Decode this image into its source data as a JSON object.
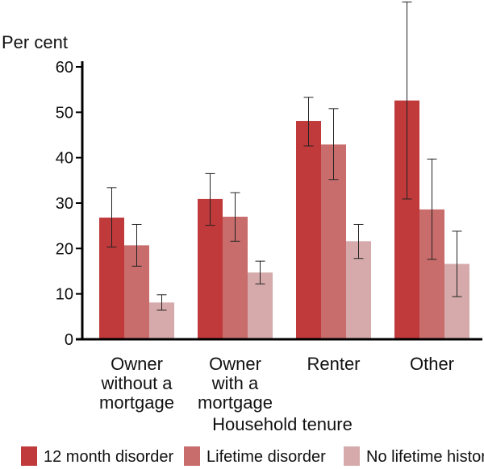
{
  "chart_data": {
    "type": "bar",
    "ylabel": "Per cent",
    "xlabel": "Household tenure",
    "ylim": [
      0,
      60
    ],
    "yticks": [
      "0",
      "10",
      "20",
      "30",
      "40",
      "50",
      "60"
    ],
    "categories": [
      [
        "Owner",
        "without a",
        "mortgage"
      ],
      [
        "Owner",
        "with a",
        "mortgage"
      ],
      [
        "Renter"
      ],
      [
        "Other"
      ]
    ],
    "series": [
      {
        "name": "12 month disorder",
        "color": "#c0393b",
        "values": [
          26.8,
          30.9,
          48.1,
          52.6
        ],
        "err_low": [
          20.3,
          25.1,
          42.6,
          30.9
        ],
        "err_high": [
          33.4,
          36.5,
          53.3,
          74.3
        ]
      },
      {
        "name": "Lifetime disorder",
        "color": "#c86d6c",
        "values": [
          20.7,
          27.0,
          42.9,
          28.6
        ],
        "err_low": [
          16.1,
          21.6,
          35.2,
          17.6
        ],
        "err_high": [
          25.3,
          32.3,
          50.8,
          39.7
        ]
      },
      {
        "name": "No lifetime history",
        "color": "#d6aaab",
        "values": [
          8.1,
          14.7,
          21.6,
          16.6
        ],
        "err_low": [
          6.4,
          12.2,
          17.8,
          9.4
        ],
        "err_high": [
          9.8,
          17.2,
          25.3,
          23.8
        ]
      }
    ],
    "grid": false,
    "legend_position": "bottom"
  }
}
